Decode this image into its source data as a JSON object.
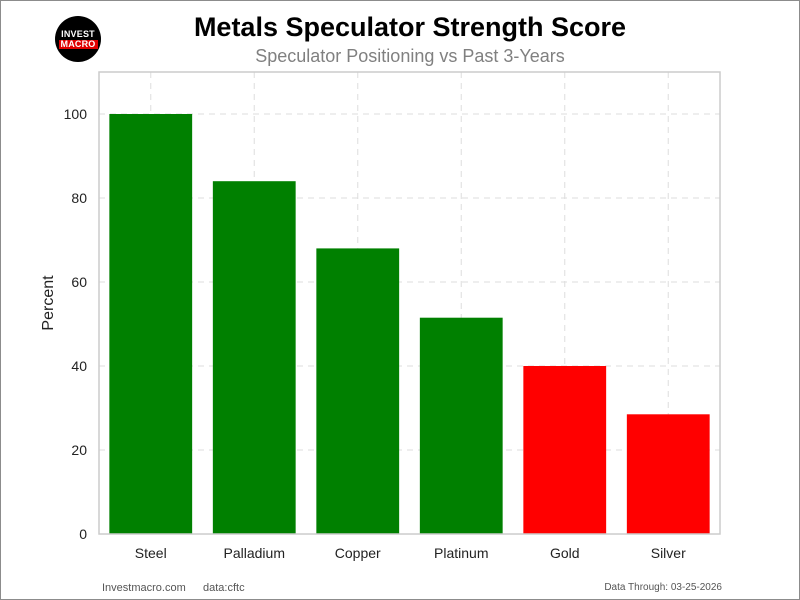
{
  "header": {
    "title": "Metals Speculator Strength Score",
    "subtitle": "Speculator Positioning vs Past 3-Years",
    "logo_top": "INVEST",
    "logo_bottom": "MACRO"
  },
  "footer": {
    "site": "Investmacro.com",
    "source": "data:cftc",
    "data_through": "Data Through: 03-25-2026"
  },
  "colors": {
    "positive": "#008000",
    "negative": "#ff0000",
    "grid": "#dddddd",
    "axis": "#cccccc"
  },
  "chart_data": {
    "type": "bar",
    "title": "Metals Speculator Strength Score",
    "subtitle": "Speculator Positioning vs Past 3-Years",
    "xlabel": "",
    "ylabel": "Percent",
    "categories": [
      "Steel",
      "Palladium",
      "Copper",
      "Platinum",
      "Gold",
      "Silver"
    ],
    "values": [
      100,
      84,
      68,
      51.5,
      40,
      28.5
    ],
    "bar_colors": [
      "#008000",
      "#008000",
      "#008000",
      "#008000",
      "#ff0000",
      "#ff0000"
    ],
    "ylim": [
      0,
      110
    ],
    "yticks": [
      0,
      20,
      40,
      60,
      80,
      100
    ],
    "grid": true,
    "grid_style": "dashed",
    "legend": "none"
  }
}
